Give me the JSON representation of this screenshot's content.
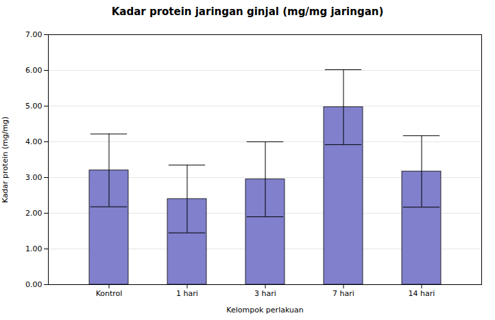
{
  "chart_data": {
    "type": "bar",
    "title": "Kadar protein jaringan ginjal (mg/mg jaringan)",
    "xlabel": "Kelompok perlakuan",
    "ylabel": "Kadar protein (mg/mg)",
    "categories": [
      "Kontrol",
      "1 hari",
      "3 hari",
      "7 hari",
      "14 hari"
    ],
    "values": [
      3.2,
      2.4,
      2.95,
      4.97,
      3.17
    ],
    "errors": [
      1.02,
      0.95,
      1.05,
      1.05,
      1.0
    ],
    "color": "#8080CC",
    "ylim": [
      0.0,
      7.0
    ],
    "yticks": [
      {
        "value": 0.0,
        "label": "0.00"
      },
      {
        "value": 1.0,
        "label": "1.00"
      },
      {
        "value": 2.0,
        "label": "2.00"
      },
      {
        "value": 3.0,
        "label": "3.00"
      },
      {
        "value": 4.0,
        "label": "4.00"
      },
      {
        "value": 5.0,
        "label": "5.00"
      },
      {
        "value": 6.0,
        "label": "6.00"
      },
      {
        "value": 7.0,
        "label": "7.00"
      }
    ],
    "grid": true
  }
}
